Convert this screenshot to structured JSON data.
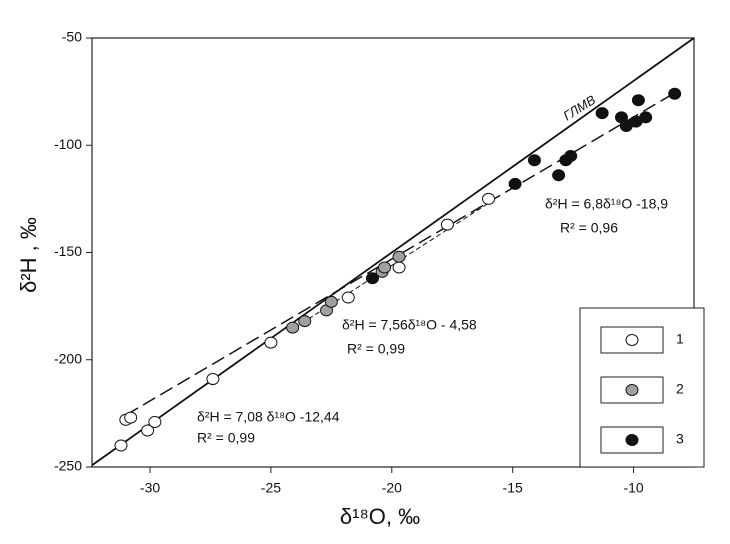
{
  "chart_data": {
    "type": "scatter",
    "xlabel": "δ¹⁸O, ‰",
    "ylabel": "δ²H , ‰",
    "xlim": [
      -32.4,
      -7.5
    ],
    "ylim": [
      -250,
      -50
    ],
    "xticks": [
      -30,
      -25,
      -20,
      -15,
      -10
    ],
    "yticks": [
      -250,
      -200,
      -150,
      -100,
      -50
    ],
    "series": [
      {
        "name": "1",
        "color": "#ffffff",
        "x": [
          -31.2,
          -31.0,
          -30.8,
          -30.1,
          -29.8,
          -27.4,
          -25.0,
          -21.8,
          -19.7,
          -17.7,
          -16.0
        ],
        "values": [
          -240,
          -228,
          -227,
          -233,
          -229,
          -209,
          -192,
          -171,
          -157,
          -137,
          -125
        ]
      },
      {
        "name": "2",
        "color": "#a0a0a0",
        "x": [
          -24.1,
          -23.6,
          -22.7,
          -22.5,
          -20.4,
          -20.3,
          -19.7
        ],
        "values": [
          -185,
          -182,
          -177,
          -173,
          -159,
          -157,
          -152
        ]
      },
      {
        "name": "3",
        "color": "#111111",
        "x": [
          -20.8,
          -14.9,
          -14.1,
          -13.1,
          -12.8,
          -12.6,
          -11.3,
          -10.5,
          -10.3,
          -9.9,
          -9.8,
          -9.5,
          -8.3
        ],
        "values": [
          -162,
          -118,
          -107,
          -114,
          -107,
          -105,
          -85,
          -87,
          -91,
          -89,
          -79,
          -87,
          -76
        ]
      }
    ],
    "lines": [
      {
        "x": [
          -32.4,
          -7.5
        ],
        "y": [
          -249.2,
          -50
        ],
        "style": "solid"
      },
      {
        "x": [
          -31.0,
          -8.3
        ],
        "y": [
          -225.8,
          -75.6
        ],
        "style": "dashed"
      },
      {
        "x": [
          -24.0,
          -16.0
        ],
        "y": [
          -185,
          -127
        ],
        "style": "dotted"
      }
    ],
    "annotations": [
      "ГЛМВ",
      "δ²H = 6,8δ¹⁸O -18,9",
      "R² = 0,96",
      "δ²H = 7,56δ¹⁸O - 4,58",
      "R² = 0,99",
      "δ²H = 7,08 δ¹⁸O -12,44",
      "R² = 0,99"
    ],
    "legend": "lower right"
  }
}
